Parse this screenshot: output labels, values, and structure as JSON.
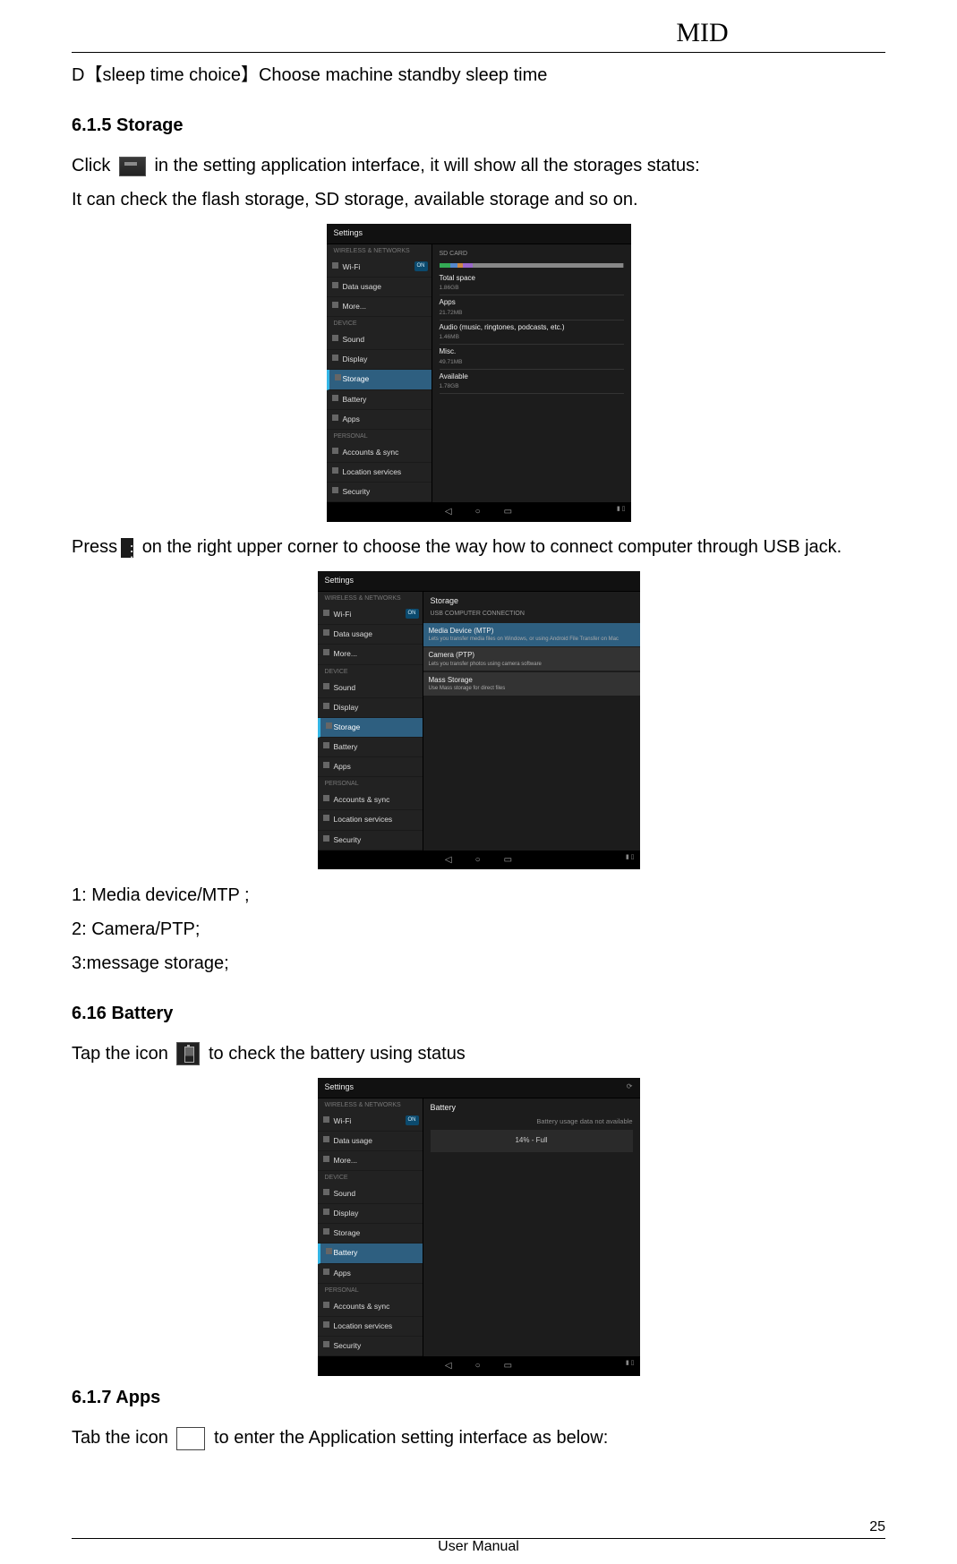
{
  "doc": {
    "header_title": "MID",
    "footer_label": "User Manual",
    "page_number": "25"
  },
  "d_line": "D【sleep time choice】Choose machine standby sleep time",
  "s615": {
    "heading": "6.1.5 Storage",
    "click_pre": "Click ",
    "click_post": " in the setting application interface, it will show all the storages status:",
    "line2": "It can check the flash storage, SD storage, available storage and so on.",
    "press_pre": "Press",
    "press_post": " on the right upper corner to choose the way how to connect computer through USB jack.",
    "opt1": "1: Media device/MTP ;",
    "opt2": "2: Camera/PTP;",
    "opt3": "3:message storage;"
  },
  "s616": {
    "heading": "6.16 Battery",
    "tap_pre": "Tap the icon ",
    "tap_post": " to check the battery using status"
  },
  "s617": {
    "heading": "6.1.7 Apps",
    "tab_pre": "Tab the icon ",
    "tab_post": " to enter the Application setting interface as below:"
  },
  "android_common": {
    "title": "Settings",
    "cat_wireless": "WIRELESS & NETWORKS",
    "cat_device": "DEVICE",
    "cat_personal": "PERSONAL",
    "nav_back": "◁",
    "nav_home": "○",
    "nav_recent": "▭",
    "toggle_on": "ON"
  },
  "side_items": {
    "wifi": "Wi-Fi",
    "data": "Data usage",
    "more": "More...",
    "sound": "Sound",
    "display": "Display",
    "storage": "Storage",
    "battery": "Battery",
    "apps": "Apps",
    "accounts": "Accounts & sync",
    "location": "Location services",
    "security": "Security"
  },
  "shot1": {
    "hd": "SD CARD",
    "total_label": "Total space",
    "total_val": "1.86GB",
    "apps_label": "Apps",
    "apps_val": "21.72MB",
    "audio_label": "Audio (music, ringtones, podcasts, etc.)",
    "audio_val": "1.46MB",
    "misc_label": "Misc.",
    "misc_val": "49.71MB",
    "avail_label": "Available",
    "avail_val": "1.78GB",
    "bar_seg1": 0.06,
    "bar_seg2": 0.04,
    "bar_seg3": 0.03,
    "bar_seg4": 0.05,
    "bar_seg5": 0.82
  },
  "shot2": {
    "hd": "Storage",
    "hd2": "USB COMPUTER CONNECTION",
    "mtp_t": "Media Device (MTP)",
    "mtp_s": "Lets you transfer media files on Windows, or using Android File Transfer on Mac",
    "ptp_t": "Camera (PTP)",
    "ptp_s": "Lets you transfer photos using camera software",
    "mass_t": "Mass Storage",
    "mass_s": "Use Mass storage for direct files"
  },
  "shot3": {
    "hd": "Battery",
    "msg": "Battery usage data not available",
    "status": "14% - Full"
  },
  "colors": {
    "page_bg": "#ffffff",
    "text": "#000000",
    "android_bg": "#1a1a1a",
    "android_accent": "#33b5e5",
    "android_sel": "#2e5f80",
    "bar_bg": "#444444",
    "bar_colors": [
      "#33aa55",
      "#5588cc",
      "#cc8844",
      "#9966cc",
      "#888888"
    ]
  }
}
